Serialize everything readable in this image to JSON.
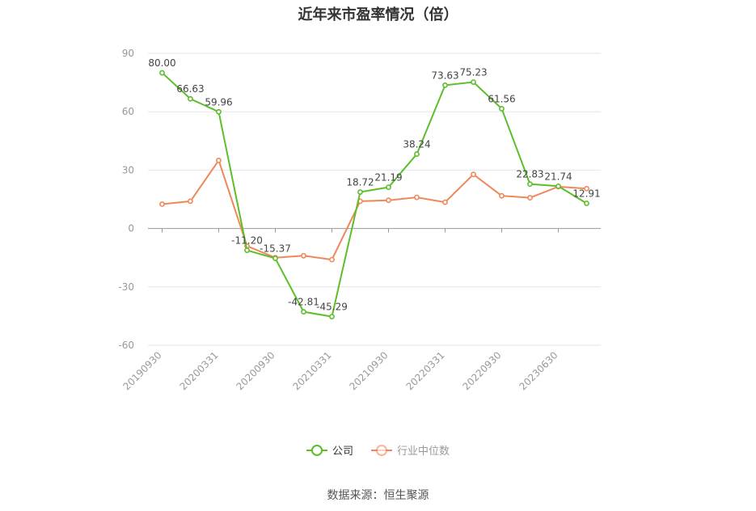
{
  "title": "近年来市盈率情况（倍）",
  "source": "数据来源：恒生聚源",
  "legend": {
    "company": "公司",
    "industry": "行业中位数"
  },
  "colors": {
    "company": "#5cbf2a",
    "industry": "#f0875a"
  },
  "chart_data": {
    "type": "line",
    "title": "近年来市盈率情况（倍）",
    "ylim": [
      -60,
      90
    ],
    "yticks": [
      -60,
      -30,
      0,
      30,
      60,
      90
    ],
    "x_tick_labels": [
      "20190930",
      "20200331",
      "20200930",
      "20210331",
      "20210930",
      "20220331",
      "20220930",
      "20230630"
    ],
    "grid": true,
    "legend_position": "bottom",
    "series": [
      {
        "name": "公司",
        "values": [
          80.0,
          66.63,
          59.96,
          -11.2,
          -15.37,
          -42.81,
          -45.29,
          18.72,
          21.19,
          38.24,
          73.63,
          75.23,
          61.56,
          22.83,
          21.74,
          12.91
        ],
        "labels": [
          "80.00",
          "66.63",
          "59.96",
          "-11.20",
          "-15.37",
          "-42.81",
          "-45.29",
          "18.72",
          "21.19",
          "38.24",
          "73.63",
          "75.23",
          "61.56",
          "22.83",
          "21.74",
          "12.91"
        ]
      },
      {
        "name": "行业中位数",
        "values": [
          12.5,
          14.0,
          35.0,
          -9.0,
          -15.0,
          -14.0,
          -16.0,
          14.0,
          14.5,
          16.0,
          13.5,
          27.8,
          16.8,
          15.8,
          21.5,
          20.5
        ]
      }
    ]
  }
}
